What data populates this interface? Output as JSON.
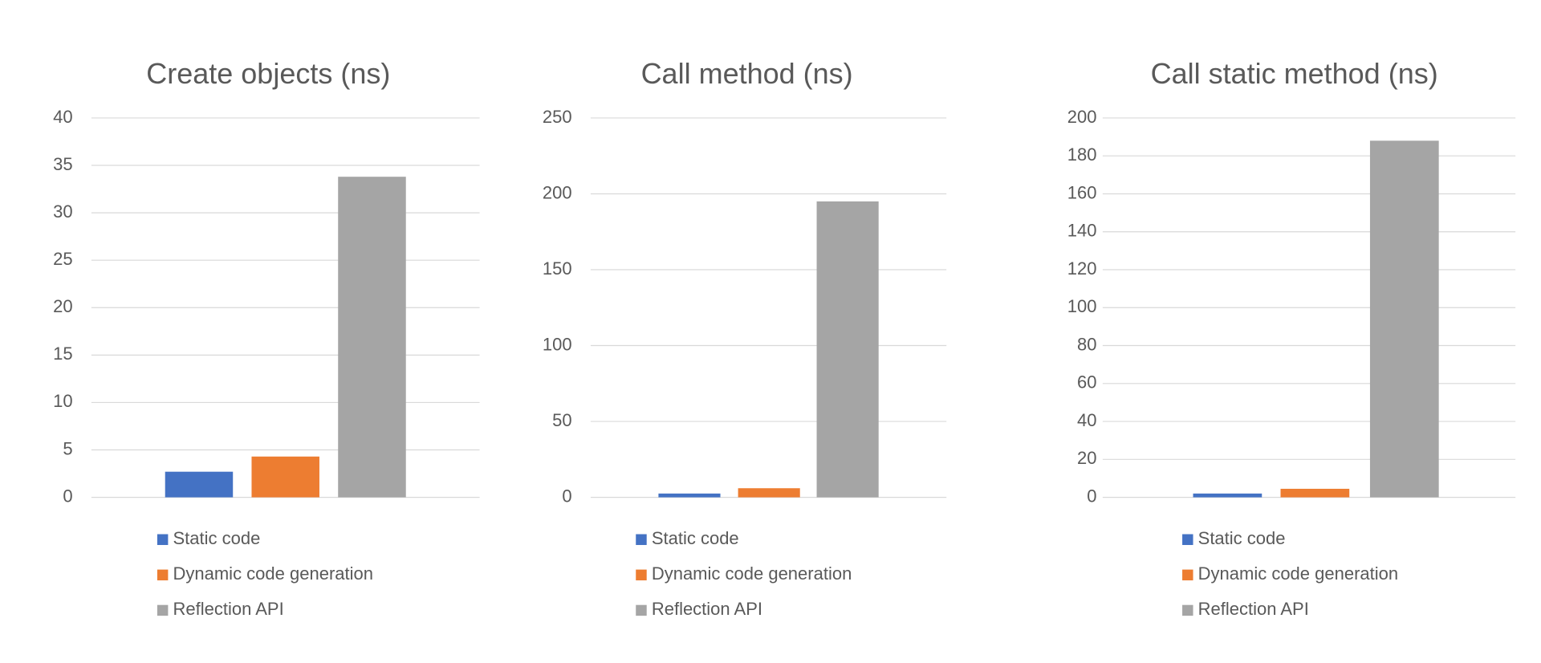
{
  "chart_data": [
    {
      "type": "bar",
      "title": "Create objects (ns)",
      "categories": [
        ""
      ],
      "series": [
        {
          "name": "Static code",
          "values": [
            2.7
          ],
          "color": "#4472c4"
        },
        {
          "name": "Dynamic code generation",
          "values": [
            4.3
          ],
          "color": "#ed7d31"
        },
        {
          "name": "Reflection API",
          "values": [
            33.8
          ],
          "color": "#a5a5a5"
        }
      ],
      "ylim": [
        0,
        40
      ],
      "yticks": [
        0,
        5,
        10,
        15,
        20,
        25,
        30,
        35,
        40
      ],
      "grid": true,
      "legend": "bottom"
    },
    {
      "type": "bar",
      "title": "Call method (ns)",
      "categories": [
        ""
      ],
      "series": [
        {
          "name": "Static code",
          "values": [
            2.5
          ],
          "color": "#4472c4"
        },
        {
          "name": "Dynamic code generation",
          "values": [
            6
          ],
          "color": "#ed7d31"
        },
        {
          "name": "Reflection API",
          "values": [
            195
          ],
          "color": "#a5a5a5"
        }
      ],
      "ylim": [
        0,
        250
      ],
      "yticks": [
        0,
        50,
        100,
        150,
        200,
        250
      ],
      "grid": true,
      "legend": "bottom"
    },
    {
      "type": "bar",
      "title": "Call static method (ns)",
      "categories": [
        ""
      ],
      "series": [
        {
          "name": "Static code",
          "values": [
            2
          ],
          "color": "#4472c4"
        },
        {
          "name": "Dynamic code generation",
          "values": [
            4.5
          ],
          "color": "#ed7d31"
        },
        {
          "name": "Reflection API",
          "values": [
            188
          ],
          "color": "#a5a5a5"
        }
      ],
      "ylim": [
        0,
        200
      ],
      "yticks": [
        0,
        20,
        40,
        60,
        80,
        100,
        120,
        140,
        160,
        180,
        200
      ],
      "grid": true,
      "legend": "bottom"
    }
  ]
}
